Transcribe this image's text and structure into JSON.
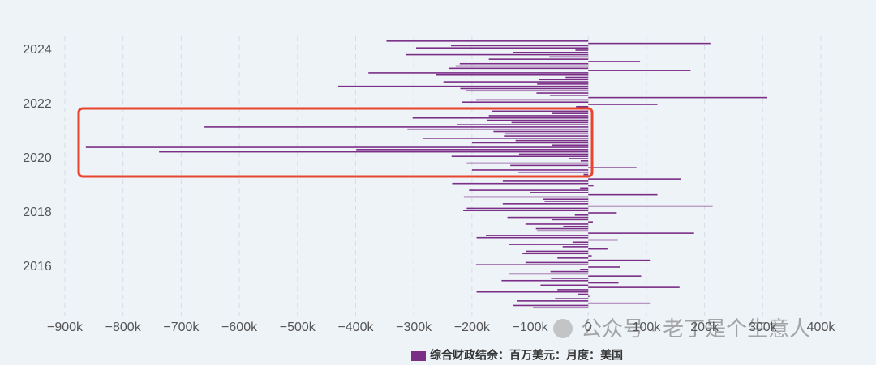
{
  "chart_data": {
    "type": "barh",
    "legend": "综合财政结余：百万美元：月度：美国",
    "watermark": "公众号 · 老丁是个生意人",
    "color": "#7a2e86",
    "grid": true,
    "xlim": [
      -900000,
      400000
    ],
    "xticks": [
      {
        "value": -900000,
        "label": "−900k"
      },
      {
        "value": -800000,
        "label": "−800k"
      },
      {
        "value": -700000,
        "label": "−700k"
      },
      {
        "value": -600000,
        "label": "−600k"
      },
      {
        "value": -500000,
        "label": "−500k"
      },
      {
        "value": -400000,
        "label": "−400k"
      },
      {
        "value": -300000,
        "label": "−300k"
      },
      {
        "value": -200000,
        "label": "−200k"
      },
      {
        "value": -100000,
        "label": "−100k"
      },
      0,
      {
        "value": 100000,
        "label": "100k"
      },
      {
        "value": 200000,
        "label": "200k"
      },
      {
        "value": 300000,
        "label": "300k"
      },
      {
        "value": 400000,
        "label": "400k"
      }
    ],
    "yticks": [
      2016,
      2018,
      2020,
      2022,
      2024
    ],
    "categories": [
      "2014-07",
      "2014-08",
      "2014-09",
      "2014-10",
      "2014-11",
      "2014-12",
      "2015-01",
      "2015-02",
      "2015-03",
      "2015-04",
      "2015-05",
      "2015-06",
      "2015-07",
      "2015-08",
      "2015-09",
      "2015-10",
      "2015-11",
      "2015-12",
      "2016-01",
      "2016-02",
      "2016-03",
      "2016-04",
      "2016-05",
      "2016-06",
      "2016-07",
      "2016-08",
      "2016-09",
      "2016-10",
      "2016-11",
      "2016-12",
      "2017-01",
      "2017-02",
      "2017-03",
      "2017-04",
      "2017-05",
      "2017-06",
      "2017-07",
      "2017-08",
      "2017-09",
      "2017-10",
      "2017-11",
      "2017-12",
      "2018-01",
      "2018-02",
      "2018-03",
      "2018-04",
      "2018-05",
      "2018-06",
      "2018-07",
      "2018-08",
      "2018-09",
      "2018-10",
      "2018-11",
      "2018-12",
      "2019-01",
      "2019-02",
      "2019-03",
      "2019-04",
      "2019-05",
      "2019-06",
      "2019-07",
      "2019-08",
      "2019-09",
      "2019-10",
      "2019-11",
      "2019-12",
      "2020-01",
      "2020-02",
      "2020-03",
      "2020-04",
      "2020-05",
      "2020-06",
      "2020-07",
      "2020-08",
      "2020-09",
      "2020-10",
      "2020-11",
      "2020-12",
      "2021-01",
      "2021-02",
      "2021-03",
      "2021-04",
      "2021-05",
      "2021-06",
      "2021-07",
      "2021-08",
      "2021-09",
      "2021-10",
      "2021-11",
      "2021-12",
      "2022-01",
      "2022-02",
      "2022-03",
      "2022-04",
      "2022-05",
      "2022-06",
      "2022-07",
      "2022-08",
      "2022-09",
      "2022-10",
      "2022-11",
      "2022-12",
      "2023-01",
      "2023-02",
      "2023-03",
      "2023-04",
      "2023-05",
      "2023-06",
      "2023-07",
      "2023-08",
      "2023-09",
      "2023-10",
      "2023-11",
      "2023-12",
      "2024-01",
      "2024-02",
      "2024-03",
      "2024-04",
      "2024-05"
    ],
    "values": [
      -95000,
      -129000,
      106000,
      -122000,
      -57000,
      2000,
      -18000,
      -192000,
      -53000,
      157000,
      -82000,
      52000,
      -149000,
      -64000,
      91000,
      -136000,
      -65000,
      -14000,
      55000,
      -193000,
      -108000,
      106000,
      -53000,
      6000,
      -113000,
      -107000,
      33000,
      -44000,
      -137000,
      -27000,
      51000,
      -192000,
      -176000,
      182000,
      -88000,
      -90000,
      -43000,
      -108000,
      8000,
      -63000,
      -139000,
      -23000,
      49000,
      -215000,
      -209000,
      214000,
      -147000,
      -75000,
      -77000,
      -214000,
      119000,
      -100000,
      -205000,
      -14000,
      9000,
      -234000,
      -147000,
      160000,
      -208000,
      -8000,
      -120000,
      -200000,
      83000,
      -134000,
      -209000,
      -13000,
      -33000,
      -235000,
      -119000,
      -738000,
      -399000,
      -864000,
      -63000,
      -200000,
      -125000,
      -284000,
      -145000,
      -144000,
      -163000,
      -311000,
      -660000,
      -226000,
      -132000,
      -174000,
      -302000,
      -171000,
      -62000,
      -165000,
      -191000,
      -21000,
      119000,
      -217000,
      -193000,
      308000,
      -66000,
      -89000,
      -211000,
      -220000,
      -430000,
      -88000,
      -249000,
      -85000,
      -39000,
      -262000,
      -378000,
      176000,
      -240000,
      -228000,
      -221000,
      89000,
      -171000,
      -67000,
      -314000,
      -129000,
      -22000,
      -296000,
      -236000,
      210000,
      -347000
    ]
  }
}
